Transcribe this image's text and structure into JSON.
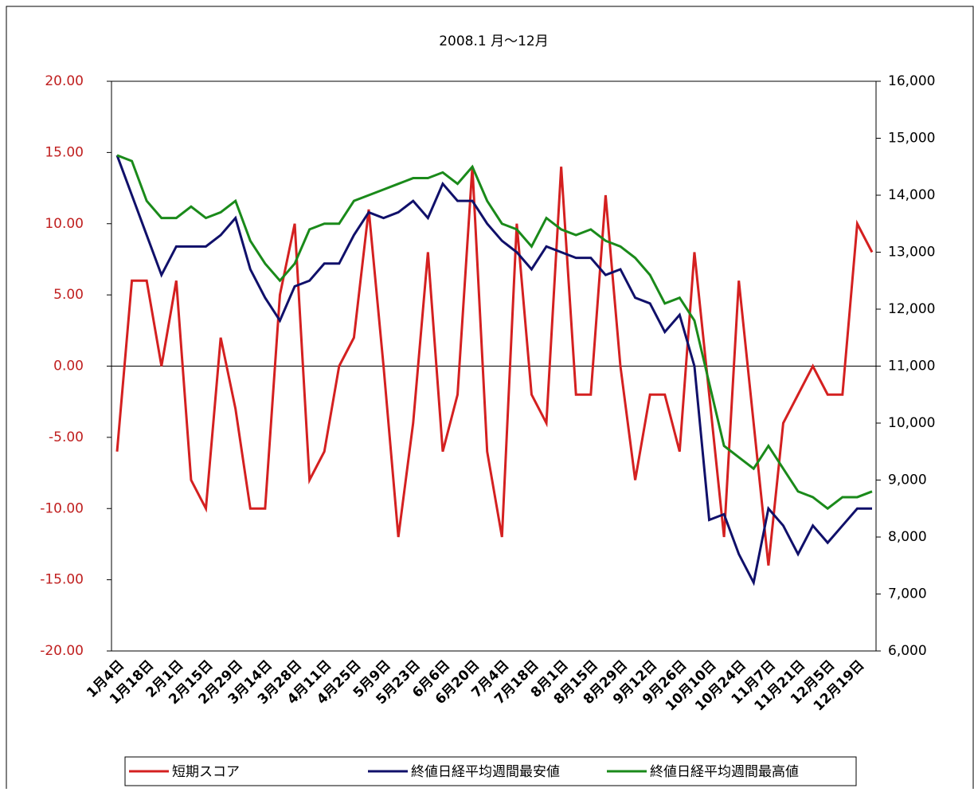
{
  "chart_data": {
    "type": "line",
    "title": "2008.1 月～12月",
    "categories": [
      "1月4日",
      null,
      "1月18日",
      null,
      "2月1日",
      null,
      "2月15日",
      null,
      "2月29日",
      null,
      "3月14日",
      null,
      "3月28日",
      null,
      "4月11日",
      null,
      "4月25日",
      null,
      "5月9日",
      null,
      "5月23日",
      null,
      "6月6日",
      null,
      "6月20日",
      null,
      "7月4日",
      null,
      "7月18日",
      null,
      "8月1日",
      null,
      "8月15日",
      null,
      "8月29日",
      null,
      "9月12日",
      null,
      "9月26日",
      null,
      "10月10日",
      null,
      "10月24日",
      null,
      "11月7日",
      null,
      "11月21日",
      null,
      "12月5日",
      null,
      "12月19日",
      null
    ],
    "series": [
      {
        "name": "短期スコア",
        "color": "#d42020",
        "values": [
          -6,
          6,
          6,
          0,
          6,
          -8,
          -10,
          2,
          -3,
          -10,
          -10,
          5,
          10,
          -8,
          -6,
          0,
          2,
          11,
          0,
          -12,
          -4,
          8,
          -6,
          -2,
          14,
          -6,
          -12,
          10,
          -2,
          -4,
          14,
          -2,
          -2,
          12,
          0,
          -8,
          -2,
          -2,
          -6,
          8,
          -2,
          -12,
          6,
          -4,
          -14,
          -4,
          -2,
          0,
          -2,
          -2,
          10,
          8
        ]
      },
      {
        "name": "終値日経平均週間最安値",
        "color": "#10106a",
        "axis": "y2",
        "values": [
          14700,
          14000,
          13300,
          12600,
          13100,
          13100,
          13100,
          13300,
          13600,
          12700,
          12200,
          11800,
          12400,
          12500,
          12800,
          12800,
          13300,
          13700,
          13600,
          13700,
          13900,
          13600,
          14200,
          13900,
          13900,
          13500,
          13200,
          13000,
          12700,
          13100,
          13000,
          12900,
          12900,
          12600,
          12700,
          12200,
          12100,
          11600,
          11900,
          11000,
          8300,
          8400,
          7700,
          7200,
          8500,
          8200,
          7700,
          8200,
          7900,
          8200,
          8500,
          8500
        ]
      },
      {
        "name": "終値日経平均週間最高値",
        "color": "#1a8a1a",
        "axis": "y2",
        "values": [
          14700,
          14600,
          13900,
          13600,
          13600,
          13800,
          13600,
          13700,
          13900,
          13200,
          12800,
          12500,
          12800,
          13400,
          13500,
          13500,
          13900,
          14000,
          14100,
          14200,
          14300,
          14300,
          14400,
          14200,
          14500,
          13900,
          13500,
          13400,
          13100,
          13600,
          13400,
          13300,
          13400,
          13200,
          13100,
          12900,
          12600,
          12100,
          12200,
          11800,
          10700,
          9600,
          9400,
          9200,
          9600,
          9200,
          8800,
          8700,
          8500,
          8700,
          8700,
          8800
        ]
      }
    ],
    "ylim": [
      -20,
      20
    ],
    "yticks": [
      {
        "value": -20,
        "label": "-20.00"
      },
      {
        "value": -15,
        "label": "-15.00"
      },
      {
        "value": -10,
        "label": "-10.00"
      },
      {
        "value": -5,
        "label": "-5.00"
      },
      {
        "value": 0,
        "label": "0.00"
      },
      {
        "value": 5,
        "label": "5.00"
      },
      {
        "value": 10,
        "label": "10.00"
      },
      {
        "value": 15,
        "label": "15.00"
      },
      {
        "value": 20,
        "label": "20.00"
      }
    ],
    "y2lim": [
      6000,
      16000
    ],
    "y2ticks": [
      {
        "value": 6000,
        "label": "6,000"
      },
      {
        "value": 7000,
        "label": "7,000"
      },
      {
        "value": 8000,
        "label": "8,000"
      },
      {
        "value": 9000,
        "label": "9,000"
      },
      {
        "value": 10000,
        "label": "10,000"
      },
      {
        "value": 11000,
        "label": "11,000"
      },
      {
        "value": 12000,
        "label": "12,000"
      },
      {
        "value": 13000,
        "label": "13,000"
      },
      {
        "value": 14000,
        "label": "14,000"
      },
      {
        "value": 15000,
        "label": "15,000"
      },
      {
        "value": 16000,
        "label": "16,000"
      }
    ],
    "legend": "bottom"
  }
}
